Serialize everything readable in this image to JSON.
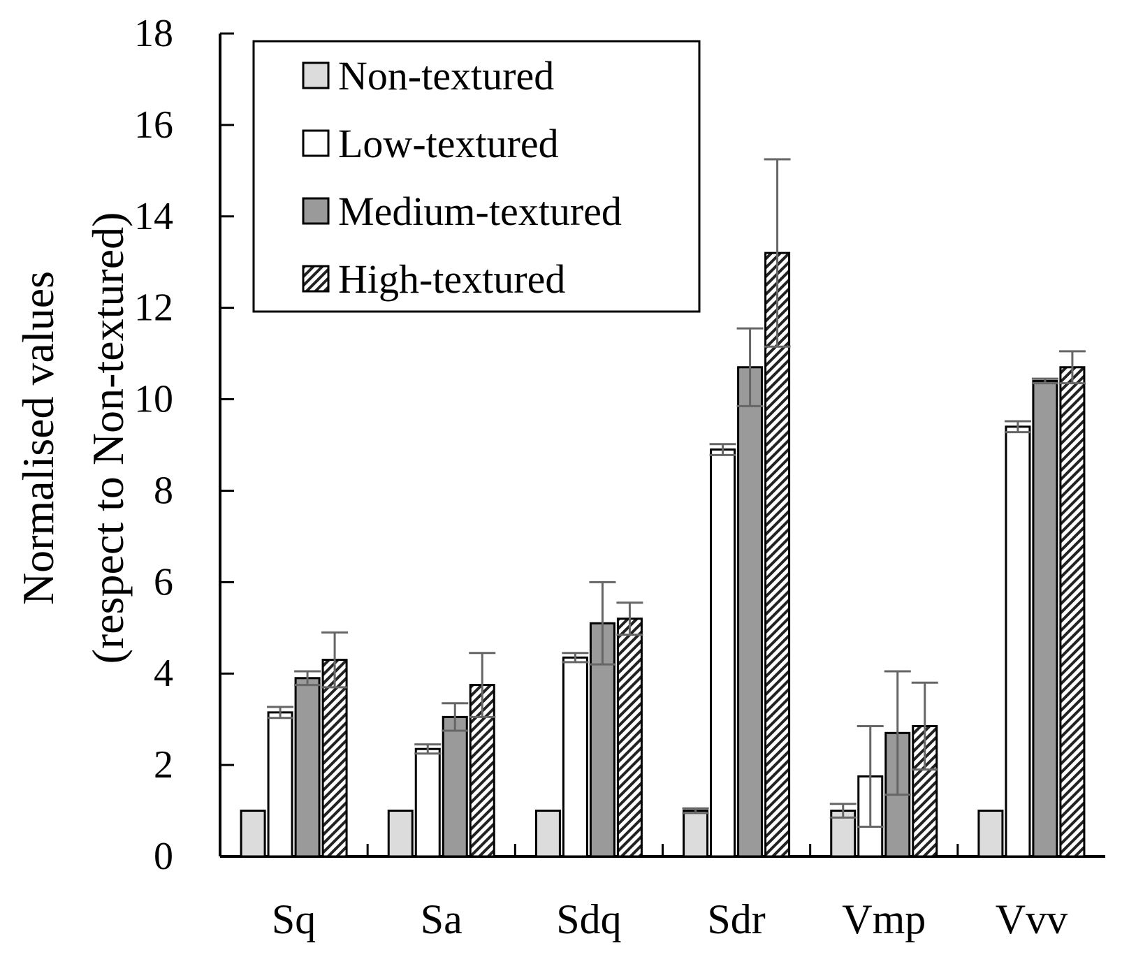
{
  "chart_data": {
    "type": "bar",
    "title": "",
    "xlabel": "",
    "ylabel": "Normalised values",
    "ylabel_sub": "(respect to Non-textured)",
    "ylim": [
      0,
      18
    ],
    "yticks": [
      "0",
      "2",
      "4",
      "6",
      "8",
      "10",
      "12",
      "14",
      "16",
      "18"
    ],
    "categories": [
      "Sq",
      "Sa",
      "Sdq",
      "Sdr",
      "Vmp",
      "Vvv"
    ],
    "legend_position": "top-left",
    "grid": false,
    "series": [
      {
        "name": "Non-textured",
        "fill": "#dcdcdc",
        "pattern": "solid",
        "values": [
          1.0,
          1.0,
          1.0,
          1.0,
          1.0,
          1.0
        ],
        "errors": [
          0.0,
          0.0,
          0.0,
          0.05,
          0.15,
          0.0
        ]
      },
      {
        "name": "Low-textured",
        "fill": "#ffffff",
        "pattern": "solid",
        "values": [
          3.15,
          2.35,
          4.35,
          8.9,
          1.75,
          9.4
        ],
        "errors": [
          0.12,
          0.1,
          0.1,
          0.12,
          1.1,
          0.12
        ]
      },
      {
        "name": "Medium-textured",
        "fill": "#9a9a9a",
        "pattern": "solid",
        "values": [
          3.9,
          3.05,
          5.1,
          10.7,
          2.7,
          10.4
        ],
        "errors": [
          0.15,
          0.3,
          0.9,
          0.85,
          1.35,
          0.05
        ]
      },
      {
        "name": "High-textured",
        "fill": "#ffffff",
        "pattern": "hatch",
        "values": [
          4.3,
          3.75,
          5.2,
          13.2,
          2.85,
          10.7
        ],
        "errors": [
          0.6,
          0.7,
          0.35,
          2.05,
          0.95,
          0.35
        ]
      }
    ]
  }
}
